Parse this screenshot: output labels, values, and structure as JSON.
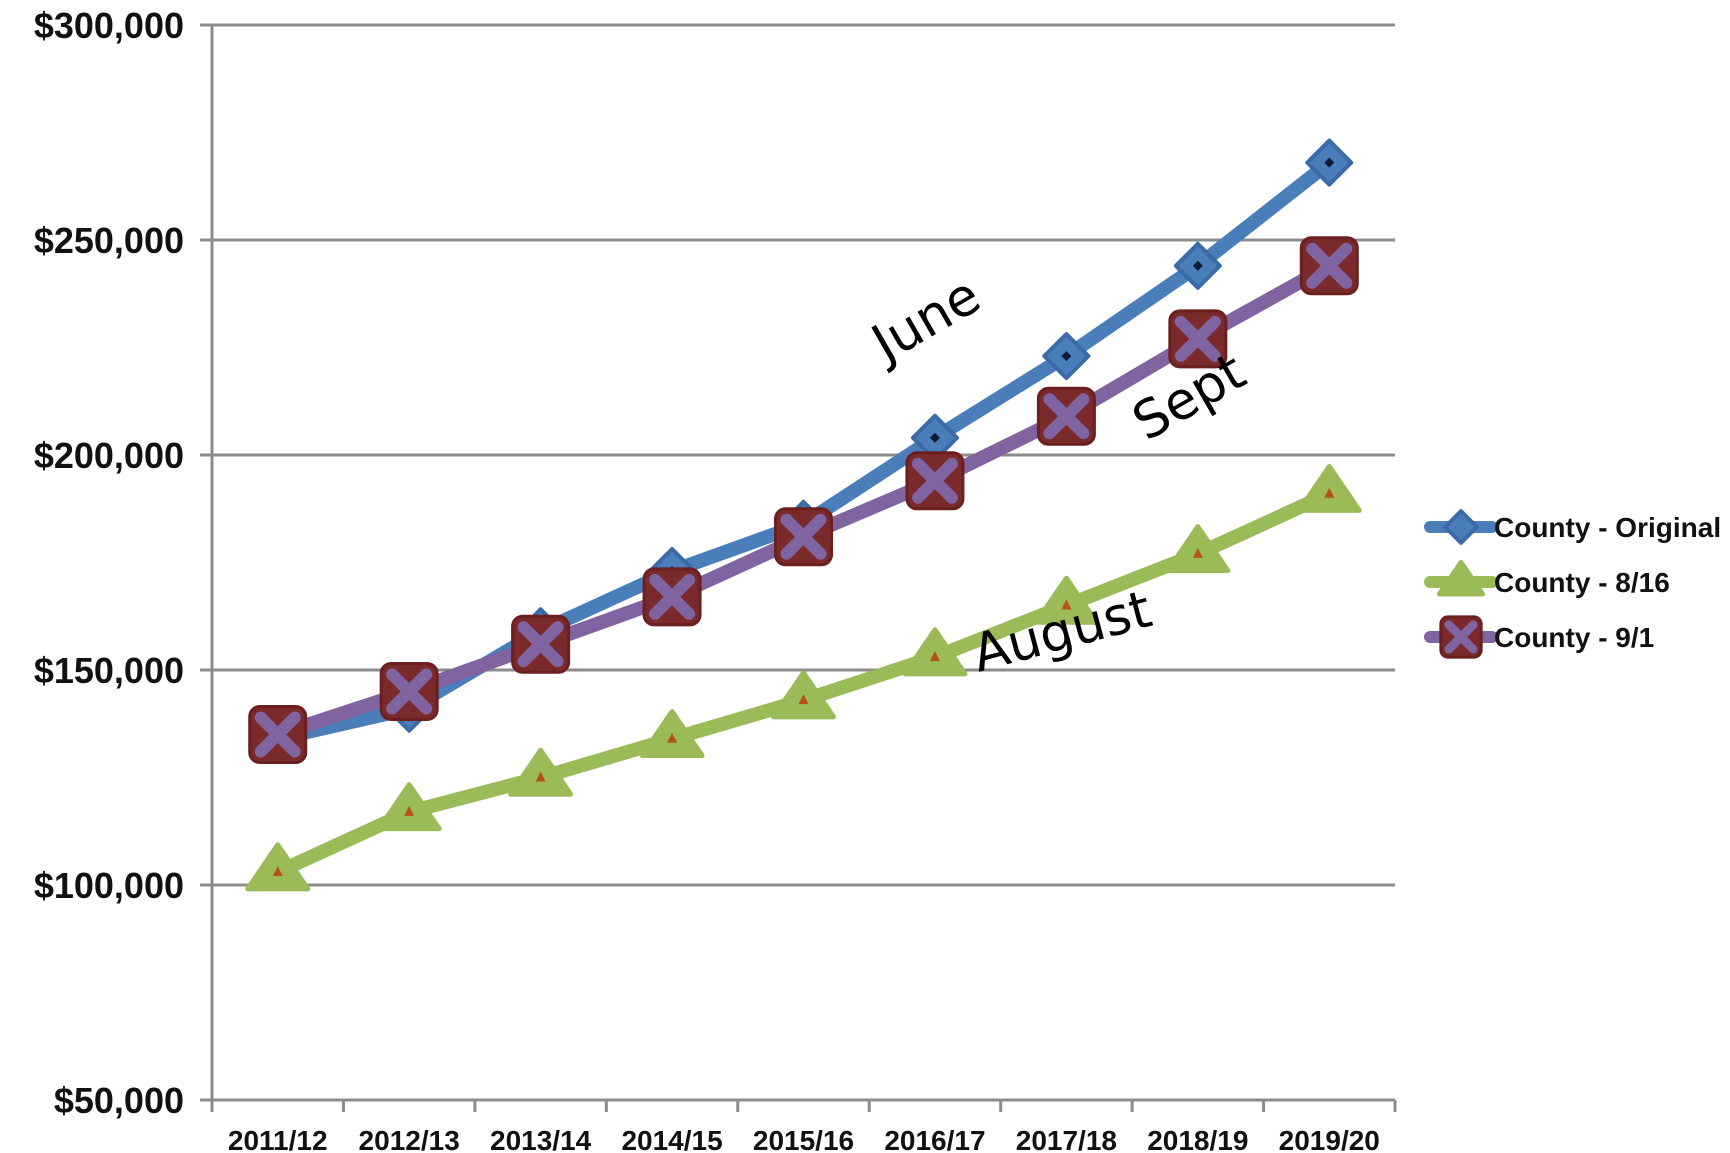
{
  "chart_data": {
    "type": "line",
    "categories": [
      "2011/12",
      "2012/13",
      "2013/14",
      "2014/15",
      "2015/16",
      "2016/17",
      "2017/18",
      "2018/19",
      "2019/20"
    ],
    "y_tick_labels": [
      "$300,000",
      "$250,000",
      "$200,000",
      "$150,000",
      "$100,000",
      "$50,000"
    ],
    "y_ticks": [
      300000,
      250000,
      200000,
      150000,
      100000,
      50000
    ],
    "ylim": [
      50000,
      300000
    ],
    "grid": true,
    "legend_position": "right",
    "series": [
      {
        "name": "County - Original",
        "marker": "diamond",
        "color": "#4A7EBB",
        "values": [
          134000,
          141000,
          159000,
          173000,
          184000,
          204000,
          223000,
          244000,
          268000
        ]
      },
      {
        "name": "County - 8/16",
        "marker": "triangle",
        "color": "#9BBB59",
        "values": [
          103000,
          117000,
          125000,
          134000,
          143000,
          153000,
          165000,
          177000,
          191000
        ]
      },
      {
        "name": "County - 9/1",
        "marker": "x",
        "color": "#8064A2",
        "values": [
          135000,
          145000,
          156000,
          167000,
          181000,
          194000,
          209000,
          227000,
          244000
        ]
      }
    ],
    "annotations": [
      {
        "text": "June",
        "x": "2016/17",
        "y": 228000,
        "rotate": -30
      },
      {
        "text": "Sept",
        "x": "2018/19",
        "y": 210000,
        "rotate": -30
      },
      {
        "text": "August",
        "x": "2017/18",
        "y": 155000,
        "rotate": -15
      }
    ]
  }
}
